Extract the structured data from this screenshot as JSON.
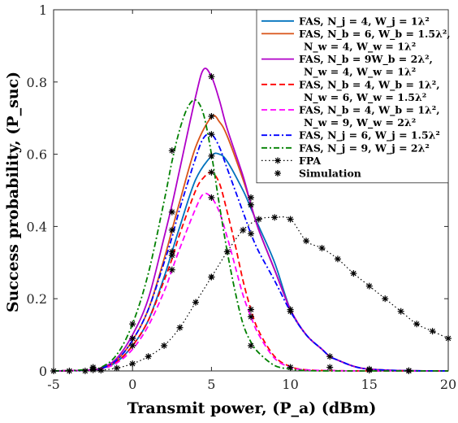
{
  "chart_data": {
    "type": "line",
    "title": "",
    "xlabel": "Transmit power, (P_a) (dBm)",
    "ylabel": "Success probability, (P_suc)",
    "xlim": [
      -5,
      20
    ],
    "ylim": [
      0,
      1
    ],
    "xticks": [
      -5,
      0,
      5,
      10,
      15,
      20
    ],
    "yticks": [
      0,
      0.2,
      0.4,
      0.6,
      0.8,
      1
    ],
    "xtick_labels": [
      "-5",
      "0",
      "5",
      "10",
      "15",
      "20"
    ],
    "ytick_labels": [
      "0",
      "0.2",
      "0.4",
      "0.6",
      "0.8",
      "1"
    ],
    "grid": false,
    "legend_position": "top-right",
    "series": [
      {
        "name": "FAS, N_j = 4, W_j = 1λ²",
        "legend_lines": [
          "FAS, N_j = 4, W_j = 1λ²"
        ],
        "color": "#0072BD",
        "dash": "solid",
        "x": [
          -5,
          -3,
          -2,
          -1,
          0,
          1,
          2,
          2.5,
          3,
          4,
          5,
          5.5,
          6,
          7,
          7.5,
          8,
          9,
          10,
          11,
          12,
          12.5,
          13,
          14,
          15,
          17,
          20
        ],
        "y": [
          0,
          0.002,
          0.006,
          0.025,
          0.07,
          0.14,
          0.26,
          0.33,
          0.4,
          0.53,
          0.595,
          0.6,
          0.58,
          0.5,
          0.45,
          0.4,
          0.3,
          0.17,
          0.1,
          0.06,
          0.04,
          0.03,
          0.013,
          0.005,
          0.001,
          0
        ]
      },
      {
        "name": "FAS, N_b = 6, W_b = 1.5λ², N_w = 4, W_w = 1λ²",
        "legend_lines": [
          "FAS, N_b = 6, W_b = 1.5λ²,",
          "N_w = 4, W_w = 1λ²"
        ],
        "color": "#D95319",
        "dash": "solid",
        "x": [
          -5,
          -3,
          -2,
          -1,
          0,
          1,
          2,
          2.5,
          3,
          4,
          5,
          5.5,
          6,
          7,
          7.5,
          8,
          9,
          10,
          11,
          12,
          12.5,
          13,
          14,
          15,
          17,
          20
        ],
        "y": [
          0,
          0.002,
          0.007,
          0.03,
          0.085,
          0.17,
          0.31,
          0.39,
          0.47,
          0.62,
          0.703,
          0.69,
          0.65,
          0.53,
          0.46,
          0.39,
          0.28,
          0.17,
          0.1,
          0.06,
          0.04,
          0.03,
          0.013,
          0.005,
          0.001,
          0
        ]
      },
      {
        "name": "FAS, N_b = 9W_b = 2λ², N_w = 4, W_w = 1λ²",
        "legend_lines": [
          "FAS, N_b = 9W_b = 2λ²,",
          "N_w = 4, W_w = 1λ²"
        ],
        "color": "#B000C8",
        "dash": "solid",
        "x": [
          -5,
          -3,
          -2,
          -1,
          0,
          1,
          2,
          2.5,
          3,
          4,
          4.5,
          5,
          5.5,
          6,
          7,
          7.5,
          8,
          9,
          10,
          11,
          12,
          12.5,
          13,
          14,
          15,
          17,
          20
        ],
        "y": [
          0,
          0.002,
          0.008,
          0.035,
          0.1,
          0.2,
          0.37,
          0.46,
          0.56,
          0.76,
          0.835,
          0.815,
          0.75,
          0.67,
          0.54,
          0.46,
          0.39,
          0.28,
          0.17,
          0.1,
          0.06,
          0.04,
          0.03,
          0.013,
          0.005,
          0.001,
          0
        ]
      },
      {
        "name": "FAS, N_b = 4, W_b = 1λ², N_w = 6, W_w = 1.5λ²",
        "legend_lines": [
          "FAS, N_b = 4, W_b = 1λ²,",
          "N_w = 6, W_w = 1.5λ²"
        ],
        "color": "#FF0000",
        "dash": "dashed",
        "x": [
          -5,
          -3,
          -2,
          -1,
          0,
          1,
          2,
          2.5,
          3,
          4,
          4.5,
          5,
          5.5,
          6,
          6.5,
          7,
          7.5,
          8,
          9,
          10,
          11,
          12.5,
          15,
          20
        ],
        "y": [
          0,
          0.002,
          0.006,
          0.025,
          0.07,
          0.14,
          0.25,
          0.31,
          0.38,
          0.5,
          0.535,
          0.55,
          0.52,
          0.44,
          0.35,
          0.25,
          0.17,
          0.11,
          0.04,
          0.012,
          0.003,
          0.001,
          0,
          0
        ]
      },
      {
        "name": "FAS, N_b = 4, W_b = 1λ², N_w = 9, W_w = 2λ²",
        "legend_lines": [
          "FAS, N_b = 4, W_b = 1λ²,",
          "N_w = 9, W_w = 2λ²"
        ],
        "color": "#FF00FF",
        "dash": "dashed",
        "x": [
          -5,
          -3,
          -2,
          -1,
          0,
          1,
          2,
          2.5,
          3,
          4,
          4.5,
          5,
          5.5,
          6,
          6.5,
          7,
          7.5,
          8,
          9,
          10,
          11,
          12.5,
          15,
          20
        ],
        "y": [
          0,
          0.002,
          0.005,
          0.022,
          0.06,
          0.125,
          0.22,
          0.28,
          0.34,
          0.45,
          0.49,
          0.48,
          0.44,
          0.37,
          0.29,
          0.21,
          0.15,
          0.1,
          0.035,
          0.01,
          0.003,
          0.001,
          0,
          0
        ]
      },
      {
        "name": "FAS, N_j = 6, W_j = 1.5λ²",
        "legend_lines": [
          "FAS, N_j = 6, W_j = 1.5λ²"
        ],
        "color": "#0000FF",
        "dash": "dashdot",
        "x": [
          -5,
          -3,
          -2,
          -1,
          0,
          1,
          2,
          2.5,
          3,
          4,
          4.5,
          5,
          5.5,
          6,
          7,
          7.5,
          8,
          9,
          10,
          11,
          12,
          12.5,
          13,
          14,
          15,
          17,
          20
        ],
        "y": [
          0,
          0.002,
          0.007,
          0.03,
          0.085,
          0.17,
          0.3,
          0.37,
          0.45,
          0.59,
          0.645,
          0.655,
          0.62,
          0.56,
          0.44,
          0.38,
          0.33,
          0.25,
          0.165,
          0.1,
          0.06,
          0.04,
          0.03,
          0.013,
          0.005,
          0.001,
          0
        ]
      },
      {
        "name": "FAS, N_j = 9, W_j = 2λ²",
        "legend_lines": [
          "FAS, N_j = 9, W_j = 2λ²"
        ],
        "color": "#008000",
        "dash": "dashdot",
        "x": [
          -5,
          -3,
          -2,
          -1,
          0,
          1,
          2,
          2.5,
          3,
          3.5,
          4,
          4.5,
          5,
          5.5,
          6,
          6.5,
          7,
          7.5,
          8,
          9,
          10,
          11,
          12.5,
          15,
          20
        ],
        "y": [
          0,
          0.003,
          0.01,
          0.045,
          0.13,
          0.27,
          0.47,
          0.58,
          0.67,
          0.73,
          0.75,
          0.71,
          0.6,
          0.46,
          0.33,
          0.22,
          0.13,
          0.08,
          0.05,
          0.015,
          0.005,
          0.001,
          0,
          0,
          0
        ]
      },
      {
        "name": "FPA",
        "legend_lines": [
          "FPA"
        ],
        "color": "#000000",
        "dash": "dotted",
        "marker": "star",
        "x": [
          -5,
          -4,
          -3,
          -2,
          -1,
          0,
          1,
          2,
          3,
          4,
          5,
          6,
          7,
          8,
          9,
          10,
          11,
          12,
          13,
          14,
          15,
          16,
          17,
          18,
          19,
          20
        ],
        "y": [
          0,
          0,
          0,
          0.002,
          0.008,
          0.02,
          0.04,
          0.07,
          0.12,
          0.19,
          0.26,
          0.33,
          0.39,
          0.42,
          0.425,
          0.42,
          0.36,
          0.34,
          0.31,
          0.27,
          0.235,
          0.2,
          0.165,
          0.13,
          0.11,
          0.09
        ]
      },
      {
        "name": "Simulation",
        "legend_lines": [
          "Simulation"
        ],
        "color": "#000000",
        "dash": "none",
        "marker": "star",
        "x": [
          -2.5,
          -2.5,
          -2.5,
          0,
          0,
          0,
          2.5,
          2.5,
          2.5,
          2.5,
          2.5,
          2.5,
          5,
          5,
          5,
          5,
          5,
          5,
          5,
          7.5,
          7.5,
          7.5,
          7.5,
          7.5,
          7.5,
          10,
          10,
          10,
          12.5,
          12.5,
          15,
          15,
          17.5,
          17.5
        ],
        "y": [
          0.003,
          0.006,
          0.01,
          0.07,
          0.09,
          0.13,
          0.61,
          0.44,
          0.39,
          0.33,
          0.32,
          0.28,
          0.815,
          0.705,
          0.655,
          0.595,
          0.55,
          0.48,
          0.26,
          0.48,
          0.46,
          0.38,
          0.17,
          0.15,
          0.07,
          0.17,
          0.165,
          0.01,
          0.04,
          0.01,
          0.005,
          0.002,
          0.001,
          0.0
        ]
      }
    ]
  }
}
